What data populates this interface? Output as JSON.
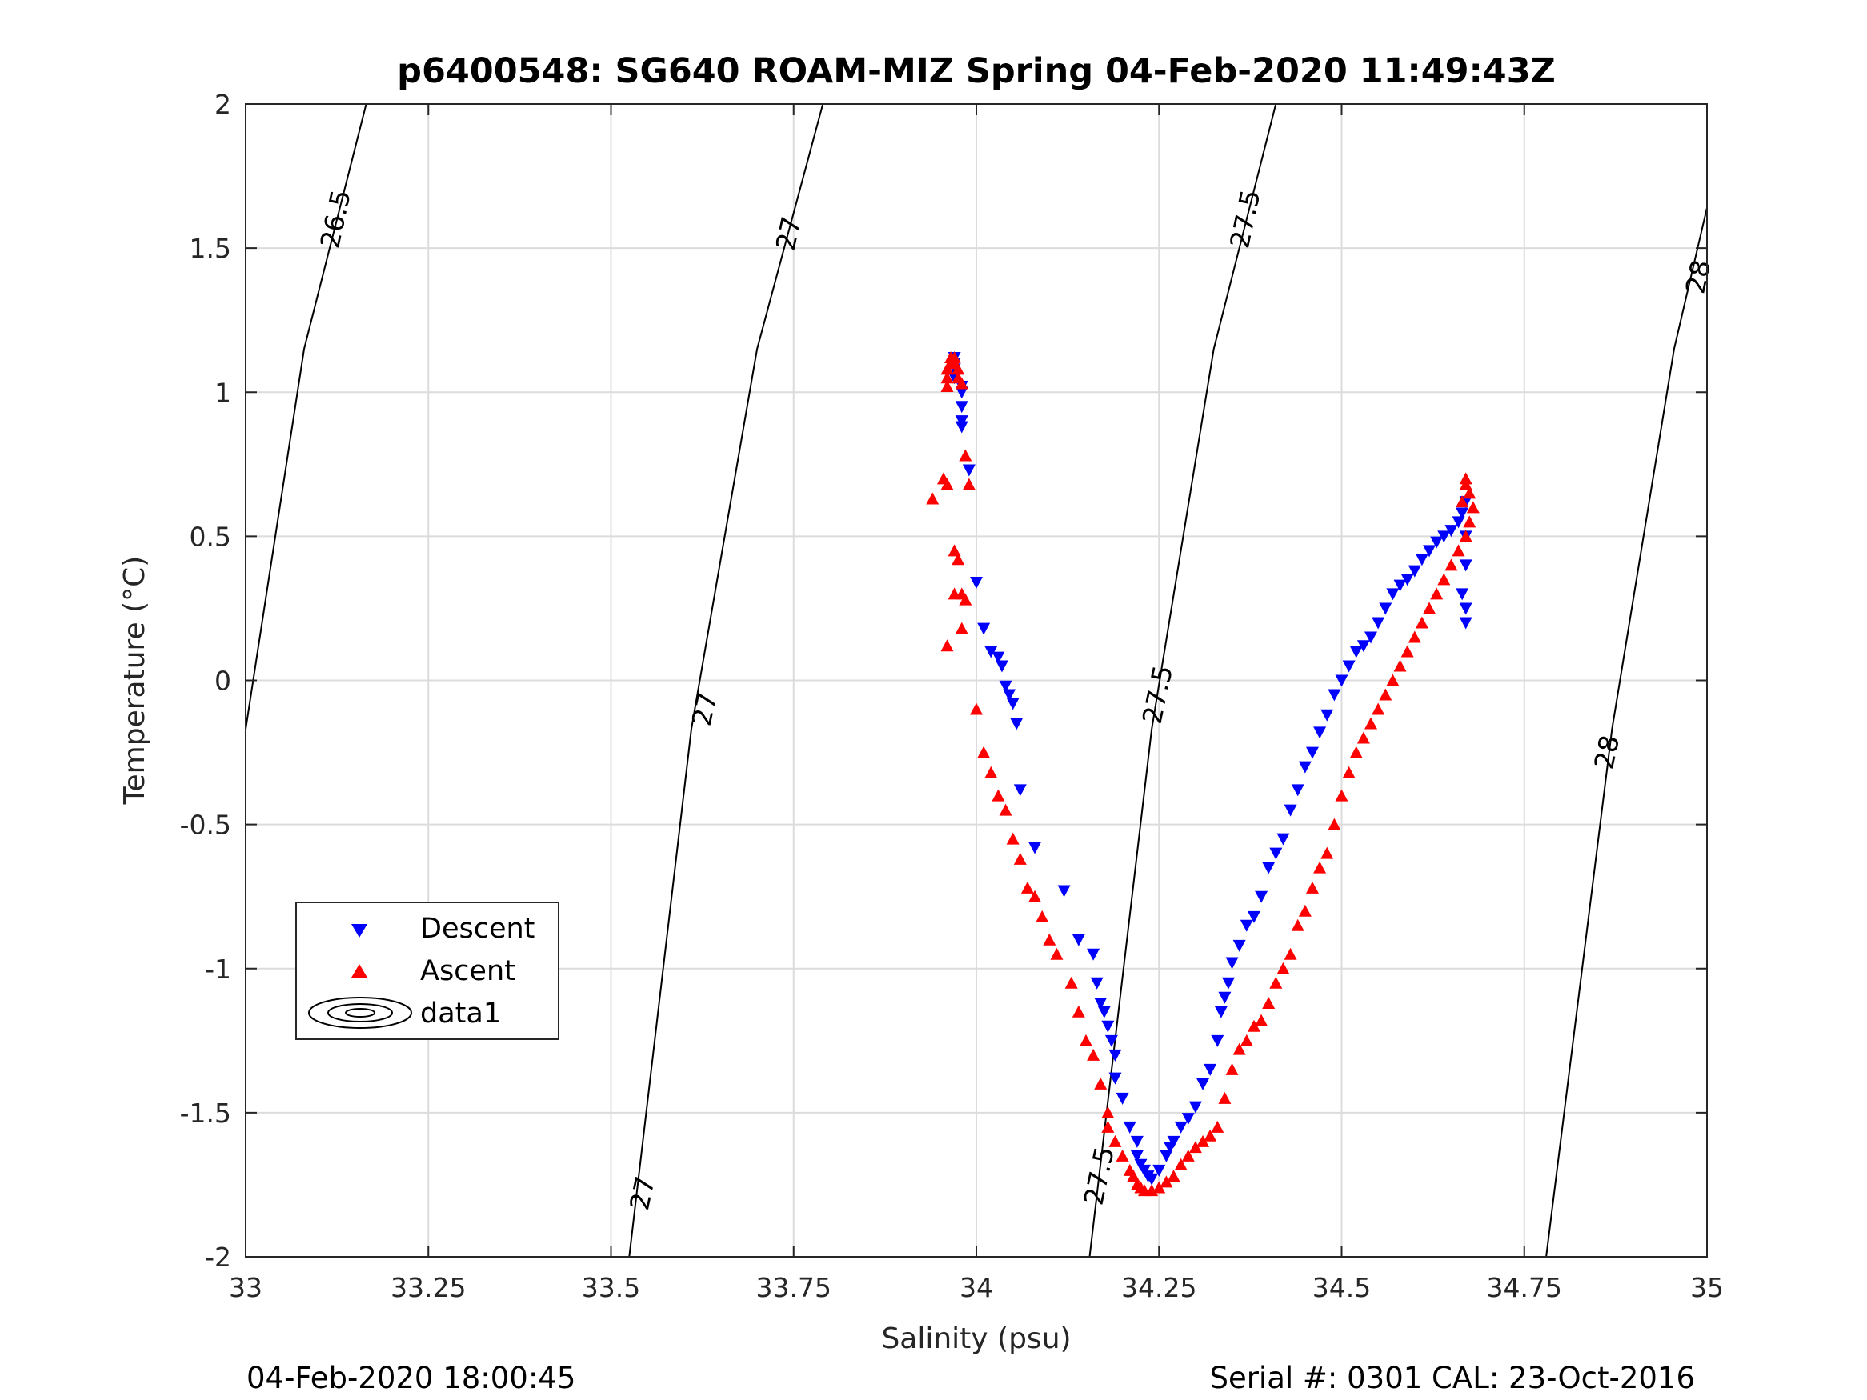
{
  "chart_data": {
    "type": "scatter",
    "title": "p6400548: SG640 ROAM-MIZ Spring 04-Feb-2020 11:49:43Z",
    "xlabel": "Salinity (psu)",
    "ylabel": "Temperature (°C)",
    "xlim": [
      33,
      35
    ],
    "ylim": [
      -2,
      2
    ],
    "x_ticks": [
      "33",
      "33.25",
      "33.5",
      "33.75",
      "34",
      "34.25",
      "34.5",
      "34.75",
      "35"
    ],
    "y_ticks": [
      "2",
      "1.5",
      "1",
      "0.5",
      "0",
      "-0.5",
      "-1",
      "-1.5",
      "-2"
    ],
    "grid": true,
    "legend_position": "lower-left",
    "footer_left": "04-Feb-2020 18:00:45",
    "footer_right": "Serial #: 0301  CAL: 23-Oct-2016",
    "contours": [
      {
        "level": "26.5",
        "points": [
          [
            33.0,
            -0.17
          ],
          [
            33.08,
            1.15
          ],
          [
            33.165,
            2.0
          ]
        ]
      },
      {
        "level": "27",
        "points": [
          [
            33.525,
            -2.0
          ],
          [
            33.61,
            -0.17
          ],
          [
            33.7,
            1.15
          ],
          [
            33.79,
            2.0
          ]
        ]
      },
      {
        "level": "27.5",
        "points": [
          [
            34.155,
            -2.0
          ],
          [
            34.24,
            -0.17
          ],
          [
            34.325,
            1.15
          ],
          [
            34.41,
            2.0
          ]
        ]
      },
      {
        "level": "28",
        "points": [
          [
            34.78,
            -2.0
          ],
          [
            34.87,
            -0.17
          ],
          [
            34.955,
            1.15
          ],
          [
            35.0,
            1.64
          ]
        ]
      }
    ],
    "contour_labels": [
      {
        "text": "26.5",
        "x": 33.125,
        "y": 1.6
      },
      {
        "text": "27",
        "x": 33.745,
        "y": 1.55
      },
      {
        "text": "27",
        "x": 33.63,
        "y": -0.1
      },
      {
        "text": "27",
        "x": 33.545,
        "y": -1.78
      },
      {
        "text": "27.5",
        "x": 34.37,
        "y": 1.6
      },
      {
        "text": "27.5",
        "x": 34.25,
        "y": -0.05
      },
      {
        "text": "27.5",
        "x": 34.17,
        "y": -1.72
      },
      {
        "text": "28",
        "x": 34.99,
        "y": 1.4
      },
      {
        "text": "28",
        "x": 34.865,
        "y": -0.25
      }
    ],
    "series": [
      {
        "name": "Descent",
        "color": "#0000ff",
        "marker": "triangle-down",
        "x": [
          33.97,
          33.97,
          33.97,
          33.97,
          33.98,
          33.98,
          33.98,
          33.98,
          33.98,
          33.98,
          33.99,
          34.0,
          34.01,
          34.02,
          34.03,
          34.035,
          34.04,
          34.045,
          34.05,
          34.055,
          34.06,
          34.08,
          34.12,
          34.14,
          34.16,
          34.165,
          34.17,
          34.175,
          34.18,
          34.185,
          34.19,
          34.19,
          34.2,
          34.21,
          34.22,
          34.22,
          34.225,
          34.23,
          34.235,
          34.24,
          34.25,
          34.26,
          34.265,
          34.27,
          34.28,
          34.29,
          34.3,
          34.31,
          34.32,
          34.33,
          34.335,
          34.34,
          34.345,
          34.35,
          34.36,
          34.37,
          34.38,
          34.39,
          34.4,
          34.41,
          34.42,
          34.43,
          34.44,
          34.45,
          34.46,
          34.47,
          34.48,
          34.49,
          34.5,
          34.51,
          34.52,
          34.53,
          34.54,
          34.55,
          34.56,
          34.57,
          34.58,
          34.59,
          34.6,
          34.61,
          34.62,
          34.63,
          34.64,
          34.65,
          34.66,
          34.665,
          34.67,
          34.67,
          34.67,
          34.665,
          34.67,
          34.67
        ],
        "y": [
          1.12,
          1.1,
          1.08,
          1.05,
          1.02,
          1.0,
          0.95,
          0.9,
          0.9,
          0.88,
          0.73,
          0.34,
          0.18,
          0.1,
          0.08,
          0.05,
          -0.02,
          -0.05,
          -0.08,
          -0.15,
          -0.38,
          -0.58,
          -0.73,
          -0.9,
          -0.95,
          -1.05,
          -1.12,
          -1.15,
          -1.2,
          -1.25,
          -1.3,
          -1.38,
          -1.45,
          -1.55,
          -1.6,
          -1.65,
          -1.68,
          -1.7,
          -1.72,
          -1.73,
          -1.7,
          -1.65,
          -1.62,
          -1.6,
          -1.55,
          -1.52,
          -1.48,
          -1.4,
          -1.35,
          -1.25,
          -1.15,
          -1.1,
          -1.05,
          -0.98,
          -0.92,
          -0.85,
          -0.82,
          -0.75,
          -0.65,
          -0.6,
          -0.55,
          -0.45,
          -0.38,
          -0.3,
          -0.25,
          -0.18,
          -0.12,
          -0.05,
          0.0,
          0.05,
          0.1,
          0.12,
          0.15,
          0.2,
          0.25,
          0.3,
          0.33,
          0.35,
          0.38,
          0.42,
          0.45,
          0.48,
          0.5,
          0.52,
          0.55,
          0.58,
          0.62,
          0.5,
          0.4,
          0.3,
          0.25,
          0.2
        ]
      },
      {
        "name": "Ascent",
        "color": "#ff0000",
        "marker": "triangle-up",
        "x": [
          33.96,
          33.96,
          33.96,
          33.965,
          33.965,
          33.97,
          33.97,
          33.975,
          33.975,
          33.98,
          33.985,
          33.99,
          33.94,
          33.955,
          33.96,
          33.97,
          33.975,
          33.98,
          33.96,
          33.98,
          33.985,
          33.97,
          34.0,
          34.01,
          34.02,
          34.03,
          34.04,
          34.05,
          34.06,
          34.07,
          34.08,
          34.09,
          34.1,
          34.11,
          34.13,
          34.14,
          34.15,
          34.16,
          34.17,
          34.18,
          34.18,
          34.19,
          34.2,
          34.21,
          34.215,
          34.22,
          34.225,
          34.23,
          34.24,
          34.25,
          34.26,
          34.27,
          34.28,
          34.29,
          34.3,
          34.31,
          34.32,
          34.33,
          34.34,
          34.35,
          34.36,
          34.37,
          34.38,
          34.39,
          34.4,
          34.41,
          34.42,
          34.43,
          34.44,
          34.45,
          34.46,
          34.47,
          34.48,
          34.49,
          34.5,
          34.51,
          34.52,
          34.53,
          34.54,
          34.55,
          34.56,
          34.57,
          34.58,
          34.59,
          34.6,
          34.61,
          34.62,
          34.63,
          34.64,
          34.65,
          34.66,
          34.67,
          34.675,
          34.68,
          34.675,
          34.67,
          34.67,
          34.665
        ],
        "y": [
          1.02,
          1.05,
          1.08,
          1.1,
          1.12,
          1.12,
          1.1,
          1.08,
          1.05,
          1.03,
          0.78,
          0.68,
          0.63,
          0.7,
          0.68,
          0.45,
          0.42,
          0.3,
          0.12,
          0.18,
          0.28,
          0.3,
          -0.1,
          -0.25,
          -0.32,
          -0.4,
          -0.45,
          -0.55,
          -0.62,
          -0.72,
          -0.75,
          -0.82,
          -0.9,
          -0.95,
          -1.05,
          -1.15,
          -1.25,
          -1.3,
          -1.4,
          -1.5,
          -1.55,
          -1.6,
          -1.65,
          -1.7,
          -1.72,
          -1.75,
          -1.76,
          -1.77,
          -1.77,
          -1.76,
          -1.74,
          -1.72,
          -1.68,
          -1.65,
          -1.62,
          -1.6,
          -1.58,
          -1.55,
          -1.45,
          -1.35,
          -1.28,
          -1.25,
          -1.2,
          -1.18,
          -1.12,
          -1.05,
          -1.0,
          -0.95,
          -0.85,
          -0.8,
          -0.72,
          -0.65,
          -0.6,
          -0.5,
          -0.4,
          -0.32,
          -0.25,
          -0.2,
          -0.15,
          -0.1,
          -0.05,
          0.0,
          0.05,
          0.1,
          0.15,
          0.2,
          0.25,
          0.3,
          0.35,
          0.4,
          0.45,
          0.5,
          0.55,
          0.6,
          0.65,
          0.7,
          0.68,
          0.62
        ]
      }
    ],
    "legend": [
      {
        "label": "Descent",
        "marker": "triangle-down",
        "color": "#0000ff"
      },
      {
        "label": "Ascent",
        "marker": "triangle-up",
        "color": "#ff0000"
      },
      {
        "label": "data1",
        "marker": "contour",
        "color": "#000000"
      }
    ]
  }
}
